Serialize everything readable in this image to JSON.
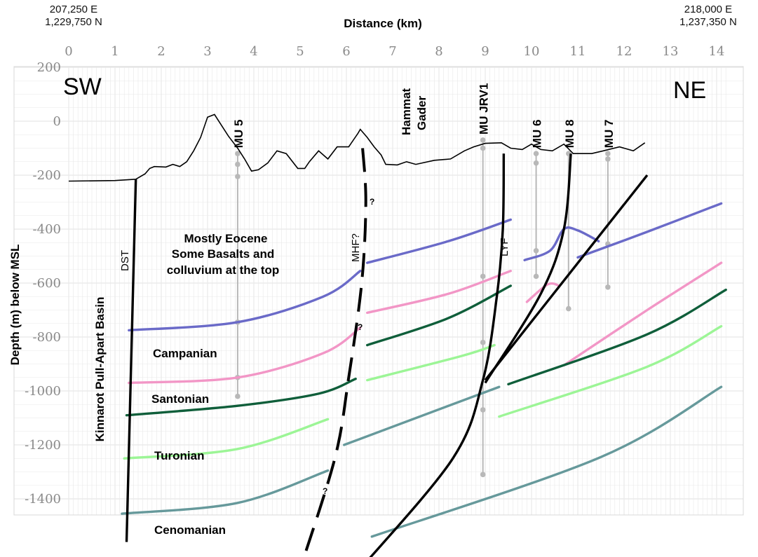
{
  "corners": {
    "left": {
      "easting": "207,250 E",
      "northing": "1,229,750 N"
    },
    "right": {
      "easting": "218,000 E",
      "northing": "1,237,350 N"
    }
  },
  "x_axis": {
    "title": "Distance (km)",
    "min": 0,
    "max": 14,
    "ticks": [
      "0",
      "1",
      "2",
      "3",
      "4",
      "5",
      "6",
      "7",
      "8",
      "9",
      "10",
      "11",
      "12",
      "13",
      "14"
    ]
  },
  "y_axis": {
    "title": "Depth (m) below MSL",
    "min": -1400,
    "max": 200,
    "ticks": [
      "200",
      "0",
      "-200",
      "-400",
      "-600",
      "-800",
      "-1000",
      "-1200",
      "-1400"
    ]
  },
  "directions": {
    "sw": "SW",
    "ne": "NE"
  },
  "labels": {
    "eocene": [
      "Mostly Eocene",
      "Some Basalts and",
      "colluvium at the top"
    ],
    "campanian": "Campanian",
    "santonian": "Santonian",
    "turonian": "Turonian",
    "cenomanian": "Cenomanian",
    "basin": "Kinnarot Pull-Apart Basin",
    "hammat": [
      "Hammat",
      "Gader"
    ],
    "dst": "DST",
    "mhf": "MHF?",
    "lyf": "LYF",
    "q1": "?",
    "q2": "?",
    "q3": "?"
  },
  "wells": [
    {
      "name": "MU 5",
      "x": 3.65,
      "top": -120,
      "bottom": -1020,
      "markers": [
        -120,
        -160,
        -205,
        -745,
        -950,
        -1020
      ]
    },
    {
      "name": "MU JRV1",
      "x": 8.95,
      "top": -70,
      "bottom": -1310,
      "markers": [
        -70,
        -100,
        -575,
        -820,
        -1070,
        -1310
      ]
    },
    {
      "name": "MU 6",
      "x": 10.1,
      "top": -120,
      "bottom": -575,
      "markers": [
        -120,
        -155,
        -480,
        -575
      ]
    },
    {
      "name": "MU 8",
      "x": 10.8,
      "top": -120,
      "bottom": -695,
      "markers": [
        -120,
        -695
      ]
    },
    {
      "name": "MU 7",
      "x": 11.65,
      "top": -120,
      "bottom": -615,
      "markers": [
        -120,
        -140,
        -455,
        -615
      ]
    }
  ],
  "colors": {
    "eocene_base": "#6a6ac8",
    "campanian": "#f296c6",
    "santonian": "#0f5e3a",
    "turonian": "#9cf596",
    "cenomanian": "#66999b",
    "fault": "#000000",
    "well": "#b8b8b8",
    "grid": "#e8e8e8"
  },
  "chart_data": {
    "type": "cross-section",
    "title": "",
    "xlabel": "Distance (km)",
    "ylabel": "Depth (m) below MSL",
    "xlim": [
      0,
      14
    ],
    "ylim": [
      -1400,
      200
    ],
    "grid": true,
    "topography": [
      [
        0,
        -222
      ],
      [
        1,
        -220
      ],
      [
        1.45,
        -215
      ],
      [
        1.65,
        -195
      ],
      [
        1.75,
        -175
      ],
      [
        1.85,
        -168
      ],
      [
        2.1,
        -170
      ],
      [
        2.25,
        -160
      ],
      [
        2.4,
        -168
      ],
      [
        2.55,
        -150
      ],
      [
        2.7,
        -110
      ],
      [
        2.85,
        -60
      ],
      [
        3.0,
        15
      ],
      [
        3.15,
        25
      ],
      [
        3.3,
        -15
      ],
      [
        3.45,
        -55
      ],
      [
        3.65,
        -100
      ],
      [
        3.8,
        -140
      ],
      [
        3.95,
        -185
      ],
      [
        4.1,
        -180
      ],
      [
        4.3,
        -155
      ],
      [
        4.5,
        -110
      ],
      [
        4.7,
        -120
      ],
      [
        4.95,
        -175
      ],
      [
        5.1,
        -175
      ],
      [
        5.2,
        -150
      ],
      [
        5.4,
        -110
      ],
      [
        5.6,
        -140
      ],
      [
        5.8,
        -95
      ],
      [
        6.05,
        -95
      ],
      [
        6.25,
        -45
      ],
      [
        6.3,
        -30
      ],
      [
        6.45,
        -60
      ],
      [
        6.6,
        -95
      ],
      [
        6.75,
        -125
      ],
      [
        6.85,
        -160
      ],
      [
        7.1,
        -162
      ],
      [
        7.3,
        -150
      ],
      [
        7.5,
        -160
      ],
      [
        7.9,
        -145
      ],
      [
        8.25,
        -140
      ],
      [
        8.55,
        -110
      ],
      [
        8.75,
        -95
      ],
      [
        9.0,
        -82
      ],
      [
        9.35,
        -80
      ],
      [
        9.55,
        -100
      ],
      [
        9.8,
        -105
      ],
      [
        10.0,
        -85
      ],
      [
        10.2,
        -105
      ],
      [
        10.45,
        -110
      ],
      [
        10.7,
        -85
      ],
      [
        10.9,
        -120
      ],
      [
        11.3,
        -120
      ],
      [
        11.55,
        -110
      ],
      [
        11.9,
        -95
      ],
      [
        12.2,
        -110
      ],
      [
        12.45,
        -80
      ]
    ],
    "series": [
      {
        "name": "",
        "segments": [
          [
            [
              1.3,
              -775
            ],
            [
              3.65,
              -745
            ],
            [
              5.5,
              -650
            ],
            [
              6.3,
              -555
            ]
          ],
          [
            [
              6.45,
              -525
            ],
            [
              8.2,
              -445
            ],
            [
              9.55,
              -365
            ]
          ],
          [
            [
              9.85,
              -515
            ],
            [
              10.4,
              -480
            ],
            [
              10.7,
              -400
            ],
            [
              11.0,
              -405
            ],
            [
              11.45,
              -445
            ]
          ],
          [
            [
              11.0,
              -505
            ],
            [
              12.5,
              -410
            ],
            [
              14.1,
              -305
            ]
          ]
        ]
      },
      {
        "name": "",
        "segments": [
          [
            [
              1.3,
              -970
            ],
            [
              3.65,
              -950
            ],
            [
              5.5,
              -860
            ],
            [
              6.3,
              -765
            ]
          ],
          [
            [
              6.45,
              -710
            ],
            [
              8.2,
              -640
            ],
            [
              9.55,
              -555
            ]
          ],
          [
            [
              9.9,
              -670
            ],
            [
              10.35,
              -605
            ],
            [
              10.6,
              -610
            ]
          ],
          [
            [
              10.7,
              -905
            ],
            [
              12.5,
              -700
            ],
            [
              14.1,
              -525
            ]
          ]
        ]
      },
      {
        "name": "",
        "segments": [
          [
            [
              1.25,
              -1090
            ],
            [
              3.65,
              -1055
            ],
            [
              5.4,
              -1010
            ],
            [
              6.2,
              -955
            ]
          ],
          [
            [
              6.45,
              -830
            ],
            [
              8.2,
              -730
            ],
            [
              9.55,
              -610
            ]
          ],
          [
            [
              9.5,
              -975
            ],
            [
              12.5,
              -790
            ],
            [
              14.2,
              -625
            ]
          ]
        ]
      },
      {
        "name": "",
        "segments": [
          [
            [
              1.2,
              -1250
            ],
            [
              3.65,
              -1215
            ],
            [
              5.6,
              -1105
            ]
          ],
          [
            [
              6.45,
              -960
            ],
            [
              8.5,
              -870
            ],
            [
              9.2,
              -830
            ]
          ],
          [
            [
              9.3,
              -1095
            ],
            [
              12.5,
              -910
            ],
            [
              14.1,
              -760
            ]
          ]
        ]
      },
      {
        "name": "",
        "segments": [
          [
            [
              1.15,
              -1455
            ],
            [
              3.65,
              -1415
            ],
            [
              5.6,
              -1295
            ]
          ],
          [
            [
              5.95,
              -1200
            ],
            [
              9.3,
              -985
            ]
          ],
          [
            [
              6.55,
              -1540
            ],
            [
              11.5,
              -1245
            ],
            [
              14.1,
              -985
            ]
          ]
        ]
      }
    ],
    "faults": [
      {
        "name": "DST",
        "dashed": false,
        "points": [
          [
            1.45,
            -215
          ],
          [
            1.25,
            -1560
          ]
        ]
      },
      {
        "name": "MHF?",
        "dashed": true,
        "points": [
          [
            6.35,
            -100
          ],
          [
            6.42,
            -300
          ],
          [
            6.33,
            -600
          ],
          [
            6.05,
            -950
          ],
          [
            5.75,
            -1250
          ],
          [
            5.0,
            -1660
          ]
        ]
      },
      {
        "name": "LYF",
        "dashed": false,
        "points": [
          [
            9.4,
            -120
          ],
          [
            9.38,
            -400
          ],
          [
            9.25,
            -650
          ],
          [
            8.95,
            -960
          ],
          [
            8.3,
            -1250
          ],
          [
            6.3,
            -1660
          ]
        ]
      },
      {
        "name": "",
        "dashed": false,
        "points": [
          [
            10.85,
            -120
          ],
          [
            10.7,
            -400
          ],
          [
            10.2,
            -640
          ],
          [
            9.0,
            -970
          ]
        ]
      },
      {
        "name": "",
        "dashed": false,
        "points": [
          [
            12.5,
            -200
          ],
          [
            9.0,
            -960
          ]
        ]
      }
    ]
  }
}
